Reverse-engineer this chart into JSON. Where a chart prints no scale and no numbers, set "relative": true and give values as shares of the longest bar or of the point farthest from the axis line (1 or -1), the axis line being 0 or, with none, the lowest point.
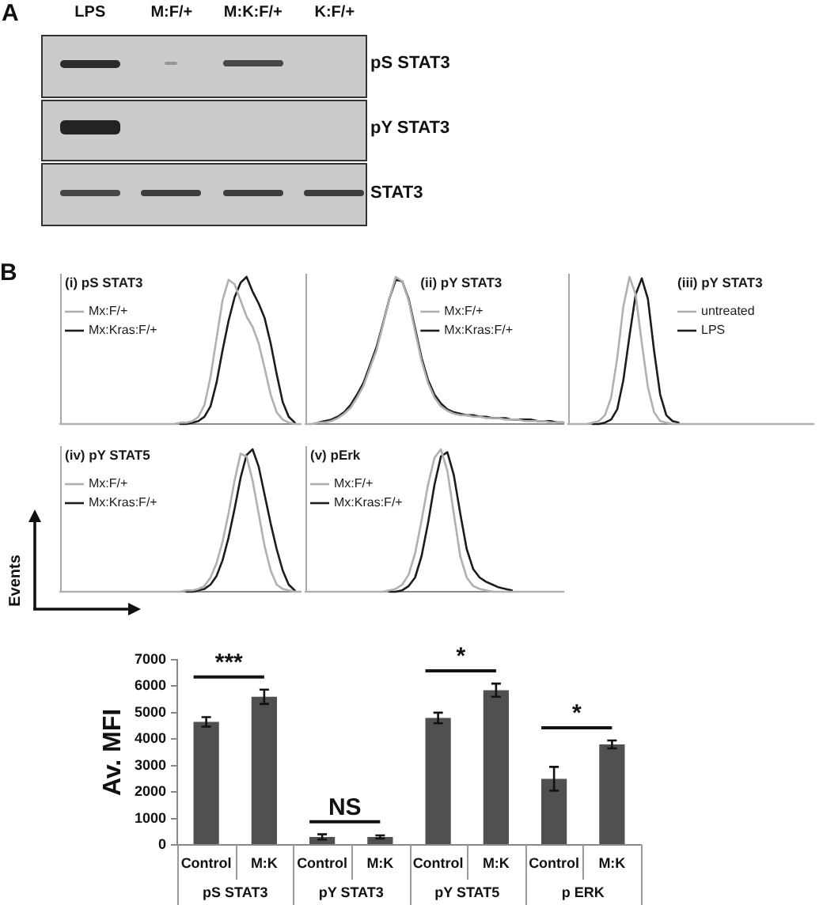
{
  "chart_data": [
    {
      "type": "other",
      "title": "A",
      "categories": [
        "LPS",
        "M:F/+",
        "M:K:F/+",
        "K:F/+"
      ],
      "y_categories": [
        "pS STAT3",
        "pY STAT3",
        "STAT3"
      ]
    },
    {
      "type": "line",
      "title": "(i) pS STAT3",
      "annotations": [
        "B"
      ],
      "relative": true,
      "legend": "top left",
      "marker": "none",
      "categories": [
        null,
        null,
        null,
        null,
        null,
        null,
        null,
        null,
        null,
        null,
        null,
        null,
        null,
        null,
        null,
        null,
        null,
        null,
        null,
        null,
        null,
        null,
        null,
        null,
        null,
        null,
        null,
        null,
        null,
        null,
        null,
        null,
        null,
        null,
        null,
        null,
        null,
        null,
        null,
        null,
        null
      ],
      "series": [
        {
          "name": "Mx:F/+",
          "color": "#b0b0b0",
          "values": [
            0,
            0,
            0,
            0,
            0,
            0,
            0,
            0,
            0,
            0,
            0,
            0,
            0,
            0,
            0,
            0,
            0,
            0,
            0,
            0,
            0.01,
            0.01,
            0.02,
            0.05,
            0.13,
            0.32,
            0.58,
            0.84,
            0.98,
            0.95,
            0.84,
            0.73,
            0.66,
            0.55,
            0.38,
            0.2,
            0.08,
            0.03,
            0.01,
            0,
            0
          ]
        },
        {
          "name": "Mx:Kras:F/+",
          "color": "#1c1c1c",
          "values": [
            null,
            null,
            null,
            null,
            null,
            null,
            null,
            null,
            null,
            null,
            null,
            null,
            null,
            null,
            null,
            null,
            null,
            null,
            null,
            null,
            0,
            0,
            0.01,
            0.02,
            0.05,
            0.12,
            0.28,
            0.5,
            0.7,
            0.86,
            0.96,
            1,
            0.9,
            0.82,
            0.72,
            0.55,
            0.34,
            0.15,
            0.05,
            0.01,
            null
          ]
        }
      ]
    },
    {
      "type": "line",
      "title": "(ii) pY STAT3",
      "relative": true,
      "legend": "top right",
      "marker": "none",
      "categories": [
        null,
        null,
        null,
        null,
        null,
        null,
        null,
        null,
        null,
        null,
        null,
        null,
        null,
        null,
        null,
        null,
        null,
        null,
        null,
        null,
        null,
        null,
        null,
        null,
        null,
        null,
        null,
        null,
        null,
        null,
        null,
        null,
        null,
        null,
        null,
        null,
        null,
        null,
        null,
        null,
        null
      ],
      "series": [
        {
          "name": "Mx:F/+",
          "color": "#b0b0b0",
          "values": [
            0,
            0,
            0.01,
            0.01,
            0.02,
            0.04,
            0.07,
            0.11,
            0.18,
            0.26,
            0.38,
            0.5,
            0.67,
            0.85,
            1,
            0.97,
            0.84,
            0.63,
            0.43,
            0.28,
            0.18,
            0.12,
            0.09,
            0.07,
            0.06,
            0.06,
            0.05,
            0.05,
            0.04,
            0.04,
            0.04,
            0.03,
            0.03,
            0.03,
            0.02,
            0.02,
            0.02,
            0.02,
            0.01,
            0.01,
            0.01
          ]
        },
        {
          "name": "Mx:Kras:F/+",
          "color": "#1c1c1c",
          "values": [
            null,
            null,
            0.01,
            0.02,
            0.03,
            0.05,
            0.08,
            0.13,
            0.2,
            0.28,
            0.4,
            0.52,
            0.68,
            0.85,
            0.98,
            0.97,
            0.85,
            0.65,
            0.45,
            0.3,
            0.2,
            0.14,
            0.1,
            0.08,
            0.07,
            0.06,
            0.06,
            0.05,
            0.05,
            0.04,
            0.04,
            0.04,
            0.03,
            0.03,
            0.03,
            0.03,
            0.02,
            0.02,
            0.02,
            0.01,
            0.01
          ]
        }
      ]
    },
    {
      "type": "line",
      "title": "(iii) pY STAT3",
      "relative": true,
      "legend": "top right",
      "marker": "none",
      "categories": [
        null,
        null,
        null,
        null,
        null,
        null,
        null,
        null,
        null,
        null,
        null,
        null,
        null,
        null,
        null,
        null,
        null,
        null,
        null,
        null,
        null,
        null,
        null,
        null,
        null,
        null,
        null,
        null,
        null,
        null,
        null,
        null,
        null,
        null,
        null,
        null,
        null,
        null,
        null,
        null,
        null
      ],
      "series": [
        {
          "name": "untreated",
          "color": "#b0b0b0",
          "values": [
            0,
            0,
            0,
            0,
            0.01,
            0.02,
            0.06,
            0.18,
            0.45,
            0.8,
            1,
            0.88,
            0.55,
            0.25,
            0.08,
            0.02,
            0.01,
            0,
            0,
            0,
            0,
            0,
            0,
            0,
            0,
            0,
            0,
            0,
            0,
            0,
            0,
            0,
            0,
            0,
            0,
            0,
            0,
            0,
            0,
            0,
            0
          ]
        },
        {
          "name": "LPS",
          "color": "#1c1c1c",
          "values": [
            null,
            null,
            null,
            null,
            0,
            0,
            0.01,
            0.03,
            0.1,
            0.3,
            0.6,
            0.88,
            0.99,
            0.85,
            0.5,
            0.2,
            0.06,
            0.02,
            0.01,
            null,
            null,
            null,
            null,
            null,
            null,
            null,
            null,
            null,
            null,
            null,
            null,
            null,
            null,
            null,
            null,
            null,
            null,
            null,
            null,
            null,
            null
          ]
        }
      ]
    },
    {
      "type": "line",
      "title": "(iv) pY STAT5",
      "ylabel": "Events",
      "relative": true,
      "legend": "top left",
      "marker": "none",
      "categories": [
        null,
        null,
        null,
        null,
        null,
        null,
        null,
        null,
        null,
        null,
        null,
        null,
        null,
        null,
        null,
        null,
        null,
        null,
        null,
        null,
        null,
        null,
        null,
        null,
        null,
        null,
        null,
        null,
        null,
        null,
        null,
        null,
        null,
        null,
        null,
        null,
        null,
        null,
        null,
        null,
        null
      ],
      "series": [
        {
          "name": "Mx:F/+",
          "color": "#b0b0b0",
          "values": [
            0,
            0,
            0,
            0,
            0,
            0,
            0,
            0,
            0,
            0,
            0,
            0,
            0,
            0,
            0,
            0,
            0,
            0,
            0,
            0,
            0,
            0.01,
            0.01,
            0.02,
            0.04,
            0.1,
            0.2,
            0.35,
            0.55,
            0.78,
            0.97,
            0.95,
            0.78,
            0.55,
            0.32,
            0.15,
            0.05,
            0.02,
            0.01,
            0,
            0
          ]
        },
        {
          "name": "Mx:Kras:F/+",
          "color": "#1c1c1c",
          "values": [
            null,
            null,
            null,
            null,
            null,
            null,
            null,
            null,
            null,
            null,
            null,
            null,
            null,
            null,
            null,
            null,
            null,
            null,
            null,
            null,
            null,
            0,
            0,
            0.01,
            0.02,
            0.05,
            0.11,
            0.22,
            0.38,
            0.58,
            0.8,
            0.96,
            1,
            0.88,
            0.68,
            0.48,
            0.3,
            0.15,
            0.05,
            0.01,
            null
          ]
        }
      ]
    },
    {
      "type": "line",
      "title": "(v) pErk",
      "relative": true,
      "legend": "top left",
      "marker": "none",
      "categories": [
        null,
        null,
        null,
        null,
        null,
        null,
        null,
        null,
        null,
        null,
        null,
        null,
        null,
        null,
        null,
        null,
        null,
        null,
        null,
        null,
        null,
        null,
        null,
        null,
        null,
        null,
        null,
        null,
        null,
        null,
        null,
        null,
        null,
        null,
        null,
        null,
        null,
        null,
        null,
        null,
        null
      ],
      "series": [
        {
          "name": "Mx:F/+",
          "color": "#b0b0b0",
          "values": [
            0,
            0,
            0,
            0,
            0,
            0,
            0,
            0,
            0,
            0,
            0,
            0,
            0,
            0.01,
            0.02,
            0.05,
            0.12,
            0.27,
            0.5,
            0.75,
            0.94,
            1,
            0.85,
            0.55,
            0.25,
            0.1,
            0.04,
            0.02,
            0.01,
            0,
            0,
            0,
            0,
            0,
            0,
            0,
            0,
            0,
            0,
            0,
            0
          ]
        },
        {
          "name": "Mx:Kras:F/+",
          "color": "#1c1c1c",
          "values": [
            null,
            null,
            null,
            null,
            null,
            null,
            null,
            null,
            null,
            null,
            null,
            null,
            null,
            0,
            0,
            0.01,
            0.04,
            0.1,
            0.25,
            0.48,
            0.75,
            0.95,
            0.98,
            0.82,
            0.55,
            0.3,
            0.16,
            0.1,
            0.07,
            0.05,
            0.03,
            0.02,
            0.01,
            null,
            null,
            null,
            null,
            null,
            null,
            null,
            null
          ]
        }
      ]
    },
    {
      "type": "bar",
      "ylabel": "Av. MFI",
      "categories": [
        "pS STAT3",
        "pY STAT3",
        "pY STAT5",
        "p ERK"
      ],
      "series": [
        {
          "name": "Control",
          "color": "#505050",
          "values": [
            4650,
            300,
            4800,
            2500
          ],
          "errors": [
            180,
            100,
            200,
            450
          ]
        },
        {
          "name": "M:K",
          "color": "#505050",
          "values": [
            5600,
            300,
            5850,
            3800
          ],
          "errors": [
            270,
            60,
            250,
            150
          ]
        }
      ],
      "ylim": [
        0,
        7000
      ],
      "yticks": [
        0,
        1000,
        2000,
        3000,
        4000,
        5000,
        6000,
        7000
      ],
      "annotations": [
        "***",
        "NS",
        "*",
        "*"
      ]
    }
  ]
}
